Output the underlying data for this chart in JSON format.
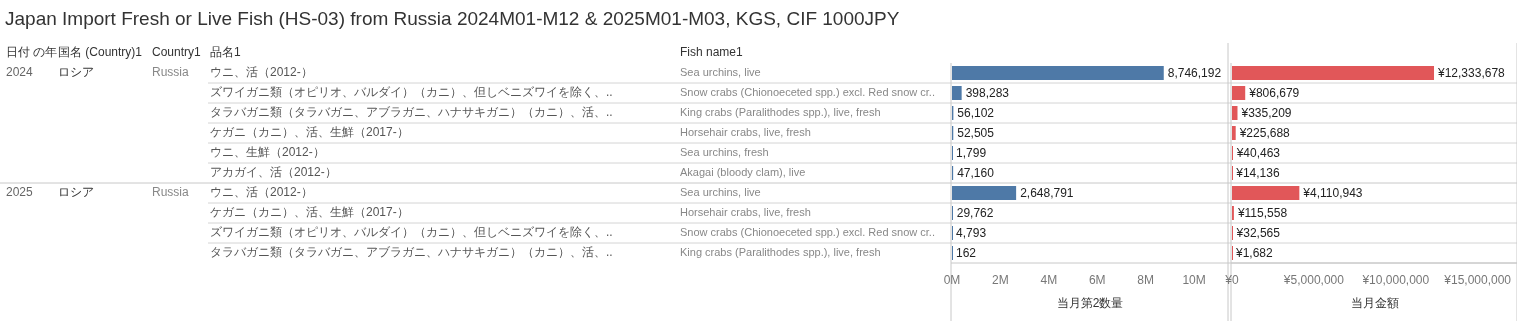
{
  "chart_data": [
    {
      "type": "other",
      "title": "Japan Import Fresh or Live Fish (HS-03) from Russia 2024M01-M12 & 2025M01-M03, KGS, CIF 1000JPY",
      "annotations": [
        "日付 の年",
        "国名 (Country)1",
        "Country1",
        "品名1",
        "2024",
        "ロシア",
        "Russia",
        "2025",
        "ロシア",
        "Russia"
      ],
      "categories": [
        "ウニ、活（2012-）",
        "ズワイガニ類（オピリオ、バルダイ）（カニ）、但しベニズワイを除く、..",
        "タラバガニ類（タラバガニ、アブラガニ、ハナサキガニ）（カニ）、活、..",
        "ケガニ（カニ）、活、生鮮（2017-）",
        "ウニ、生鮮（2012-）",
        "アカガイ、活（2012-）",
        "ウニ、活（2012-）",
        "ケガニ（カニ）、活、生鮮（2017-）",
        "ズワイガニ類（オピリオ、バルダイ）（カニ）、但しベニズワイを除く、..",
        "タラバガニ類（タラバガニ、アブラガニ、ハナサキガニ）（カニ）、活、.."
      ]
    },
    {
      "type": "bar",
      "orientation": "horizontal",
      "ylabel": "Fish name1",
      "xlabel": "当月第2数量",
      "color": "#4e79a7",
      "categories": [
        "Sea urchins, live",
        "Snow crabs (Chionoeceted spp.) excl. Red snow cr..",
        "King crabs (Paralithodes spp.), live, fresh",
        "Horsehair crabs, live, fresh",
        "Sea urchins, fresh",
        "Akagai (bloody clam), live",
        "Sea urchins, live",
        "Horsehair crabs, live, fresh",
        "Snow crabs (Chionoeceted spp.) excl. Red snow cr..",
        "King crabs (Paralithodes spp.), live, fresh"
      ],
      "values": [
        8746192,
        398283,
        56102,
        52505,
        1799,
        47160,
        2648791,
        29762,
        4793,
        162
      ],
      "value_labels": [
        "8,746,192",
        "398,283",
        "56,102",
        "52,505",
        "1,799",
        "47,160",
        "2,648,791",
        "29,762",
        "4,793",
        "162"
      ],
      "xlim": [
        0,
        11400000
      ],
      "xticks": [
        {
          "value": 0,
          "label": "0M"
        },
        {
          "value": 2000000,
          "label": "2M"
        },
        {
          "value": 4000000,
          "label": "4M"
        },
        {
          "value": 6000000,
          "label": "6M"
        },
        {
          "value": 8000000,
          "label": "8M"
        },
        {
          "value": 10000000,
          "label": "10M"
        }
      ]
    },
    {
      "type": "bar",
      "orientation": "horizontal",
      "xlabel": "当月金額",
      "color": "#e15759",
      "tick_labels": "x",
      "categories": [
        "Sea urchins, live",
        "Snow crabs (Chionoeceted spp.) excl. Red snow cr..",
        "King crabs (Paralithodes spp.), live, fresh",
        "Horsehair crabs, live, fresh",
        "Sea urchins, fresh",
        "Akagai (bloody clam), live",
        "Sea urchins, live",
        "Horsehair crabs, live, fresh",
        "Snow crabs (Chionoeceted spp.) excl. Red snow cr..",
        "King crabs (Paralithodes spp.), live, fresh"
      ],
      "values": [
        12333678,
        806679,
        335209,
        225688,
        40463,
        14136,
        4110943,
        115558,
        32565,
        1682
      ],
      "value_labels": [
        "¥12,333,678",
        "¥806,679",
        "¥335,209",
        "¥225,688",
        "¥40,463",
        "¥14,136",
        "¥4,110,943",
        "¥115,558",
        "¥32,565",
        "¥1,682"
      ],
      "xlim": [
        0,
        17400000
      ],
      "xticks": [
        {
          "value": 0,
          "label": "¥0"
        },
        {
          "value": 5000000,
          "label": "¥5,000,000"
        },
        {
          "value": 10000000,
          "label": "¥10,000,000"
        },
        {
          "value": 15000000,
          "label": "¥15,000,000"
        }
      ]
    }
  ]
}
